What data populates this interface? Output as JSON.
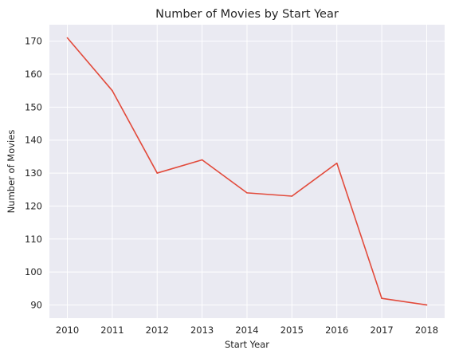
{
  "chart_data": {
    "type": "line",
    "title": "Number of Movies by Start Year",
    "xlabel": "Start Year",
    "ylabel": "Number of Movies",
    "x": [
      2010,
      2011,
      2012,
      2013,
      2014,
      2015,
      2016,
      2017,
      2018
    ],
    "series": [
      {
        "values": [
          171,
          155,
          130,
          134,
          124,
          123,
          133,
          92,
          90
        ]
      }
    ],
    "xticks": [
      "2010",
      "2011",
      "2012",
      "2013",
      "2014",
      "2015",
      "2016",
      "2017",
      "2018"
    ],
    "yticks": [
      "90",
      "100",
      "110",
      "120",
      "130",
      "140",
      "150",
      "160",
      "170"
    ],
    "xlim": [
      2009.6,
      2018.4
    ],
    "ylim": [
      86,
      175
    ],
    "grid": true,
    "legend": "none",
    "colors": {
      "background": "#eaeaf2",
      "grid": "#ffffff",
      "line": "#e24a3b"
    }
  }
}
